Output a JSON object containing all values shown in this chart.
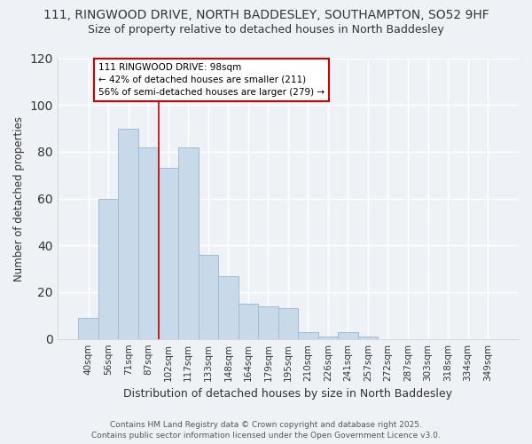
{
  "title1": "111, RINGWOOD DRIVE, NORTH BADDESLEY, SOUTHAMPTON, SO52 9HF",
  "title2": "Size of property relative to detached houses in North Baddesley",
  "xlabel": "Distribution of detached houses by size in North Baddesley",
  "ylabel": "Number of detached properties",
  "footer1": "Contains HM Land Registry data © Crown copyright and database right 2025.",
  "footer2": "Contains public sector information licensed under the Open Government Licence v3.0.",
  "categories": [
    "40sqm",
    "56sqm",
    "71sqm",
    "87sqm",
    "102sqm",
    "117sqm",
    "133sqm",
    "148sqm",
    "164sqm",
    "179sqm",
    "195sqm",
    "210sqm",
    "226sqm",
    "241sqm",
    "257sqm",
    "272sqm",
    "287sqm",
    "303sqm",
    "318sqm",
    "334sqm",
    "349sqm"
  ],
  "values": [
    9,
    60,
    90,
    82,
    73,
    82,
    36,
    27,
    15,
    14,
    13,
    3,
    1,
    3,
    1,
    0,
    0,
    0,
    0,
    0,
    0
  ],
  "bar_color": "#c8d9ea",
  "bar_edge_color": "#a0bcd4",
  "property_label": "111 RINGWOOD DRIVE: 98sqm",
  "annotation_line1": "← 42% of detached houses are smaller (211)",
  "annotation_line2": "56% of semi-detached houses are larger (279) →",
  "vline_color": "#cc0000",
  "vline_position": 4,
  "annotation_box_color": "#ffffff",
  "annotation_box_edge": "#cc0000",
  "ylim": [
    0,
    120
  ],
  "yticks": [
    0,
    20,
    40,
    60,
    80,
    100,
    120
  ],
  "background_color": "#eef2f7",
  "grid_color": "#ffffff",
  "title_fontsize": 10,
  "subtitle_fontsize": 9
}
